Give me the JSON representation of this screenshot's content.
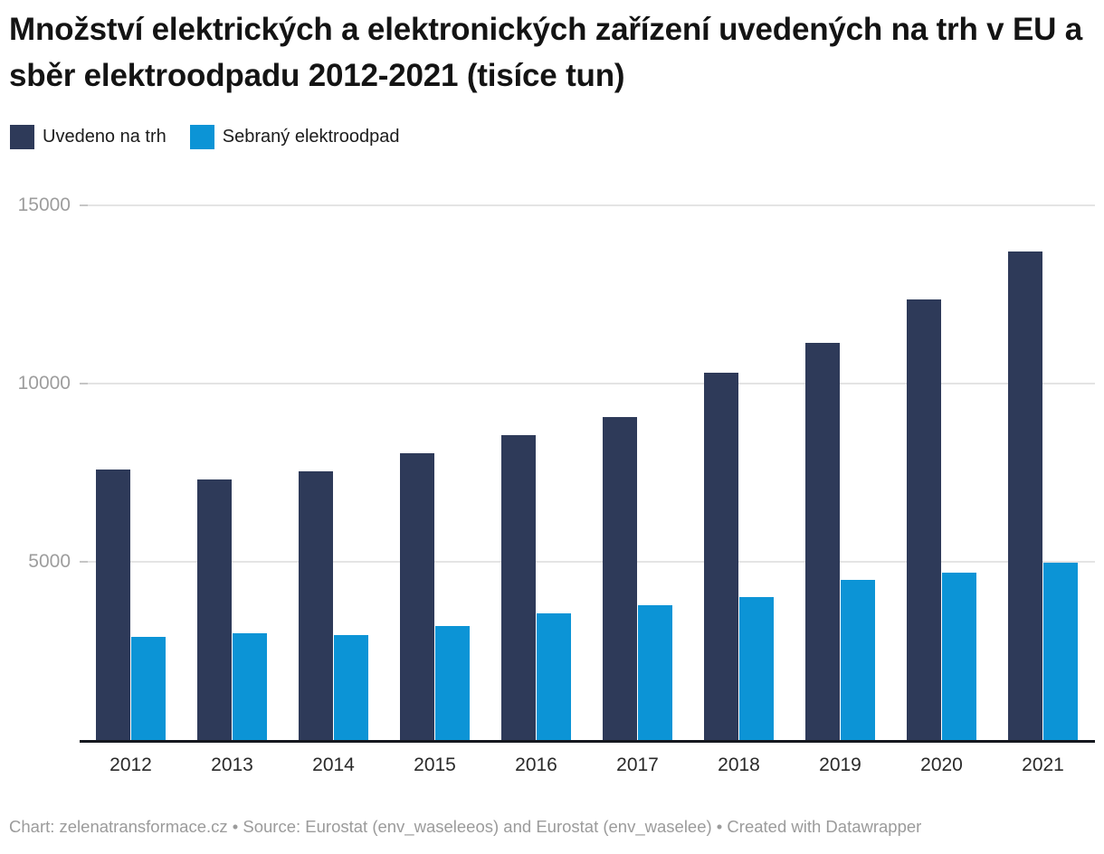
{
  "title": "Množství elektrických a elektronických zařízení uvedených na trh v EU a sběr elektroodpadu 2012-2021 (tisíce tun)",
  "footer": "Chart: zelenatransformace.cz • Source: Eurostat (env_waseleeos) and Eurostat (env_waselee) • Created with Datawrapper",
  "colors": {
    "series_put_on_market": "#2e3a59",
    "series_collected": "#0c94d6",
    "axis_line": "#15181f",
    "gridline": "#e4e4e4",
    "y_tick_text": "#9d9d9d",
    "x_tick_text": "#2a2a2a",
    "footer_text": "#9b9b9b",
    "title_text": "#141414"
  },
  "chart_data": {
    "type": "bar",
    "title": "Množství elektrických a elektronických zařízení uvedených na trh v EU a sběr elektroodpadu 2012-2021 (tisíce tun)",
    "xlabel": "",
    "ylabel": "",
    "categories": [
      "2012",
      "2013",
      "2014",
      "2015",
      "2016",
      "2017",
      "2018",
      "2019",
      "2020",
      "2021"
    ],
    "series": [
      {
        "name": "Uvedeno na trh",
        "color": "#2e3a59",
        "values": [
          7600,
          7300,
          7550,
          8050,
          8550,
          9050,
          10300,
          11150,
          12350,
          13700
        ]
      },
      {
        "name": "Sebraný elektroodpad",
        "color": "#0c94d6",
        "values": [
          2900,
          3000,
          2950,
          3200,
          3550,
          3770,
          4000,
          4500,
          4700,
          4980
        ]
      }
    ],
    "ylim": [
      0,
      15000
    ],
    "yticks": [
      5000,
      10000,
      15000
    ],
    "ytick_labels": [
      "5000",
      "10000",
      "15000"
    ],
    "grid": true,
    "legend_position": "top-left",
    "units": "tisíce tun"
  }
}
